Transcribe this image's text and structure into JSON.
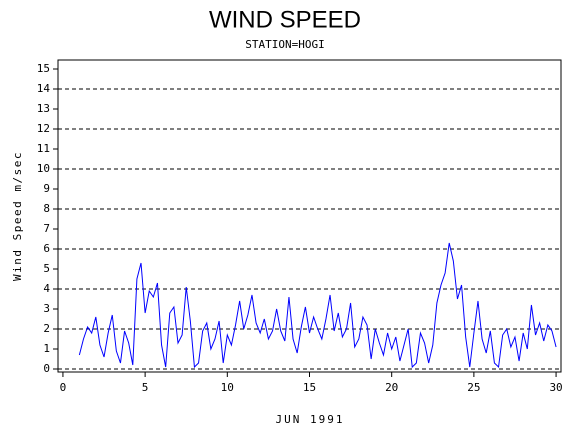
{
  "chart_data": {
    "type": "line",
    "title": "WIND SPEED",
    "subtitle": "STATION=HOGI",
    "x_label": "JUN 1991",
    "y_label": "Wind Speed m/sec",
    "xlim": [
      -0.3,
      30.3
    ],
    "ylim": [
      -0.15,
      15.45
    ],
    "xticks": [
      0,
      5,
      10,
      15,
      20,
      25,
      30
    ],
    "yticks": [
      0,
      1,
      2,
      3,
      4,
      5,
      6,
      7,
      8,
      9,
      10,
      11,
      12,
      13,
      14,
      15
    ],
    "grid": true,
    "series": [
      {
        "name": "Wind Speed",
        "color": "#0000ff",
        "x": [
          1,
          1.25,
          1.5,
          1.75,
          2,
          2.25,
          2.5,
          2.75,
          3,
          3.25,
          3.5,
          3.75,
          4,
          4.25,
          4.5,
          4.75,
          5,
          5.25,
          5.5,
          5.75,
          6,
          6.25,
          6.5,
          6.75,
          7,
          7.25,
          7.5,
          7.75,
          8,
          8.25,
          8.5,
          8.75,
          9,
          9.25,
          9.5,
          9.75,
          10,
          10.25,
          10.5,
          10.75,
          11,
          11.25,
          11.5,
          11.75,
          12,
          12.25,
          12.5,
          12.75,
          13,
          13.25,
          13.5,
          13.75,
          14,
          14.25,
          14.5,
          14.75,
          15,
          15.25,
          15.5,
          15.75,
          16,
          16.25,
          16.5,
          16.75,
          17,
          17.25,
          17.5,
          17.75,
          18,
          18.25,
          18.5,
          18.75,
          19,
          19.25,
          19.5,
          19.75,
          20,
          20.25,
          20.5,
          20.75,
          21,
          21.25,
          21.5,
          21.75,
          22,
          22.25,
          22.5,
          22.75,
          23,
          23.25,
          23.5,
          23.75,
          24,
          24.25,
          24.5,
          24.75,
          25,
          25.25,
          25.5,
          25.75,
          26,
          26.25,
          26.5,
          26.75,
          27,
          27.25,
          27.5,
          27.75,
          28,
          28.25,
          28.5,
          28.75,
          29,
          29.25,
          29.5,
          29.75,
          30
        ],
        "values": [
          0.7,
          1.5,
          2.1,
          1.8,
          2.6,
          1.2,
          0.6,
          1.8,
          2.7,
          0.9,
          0.3,
          1.9,
          1.3,
          0.2,
          4.5,
          5.3,
          2.8,
          3.9,
          3.6,
          4.3,
          1.2,
          0.1,
          2.8,
          3.1,
          1.3,
          1.7,
          4.1,
          2.4,
          0.1,
          0.3,
          1.9,
          2.3,
          1.0,
          1.5,
          2.4,
          0.3,
          1.7,
          1.2,
          2.2,
          3.4,
          2.0,
          2.7,
          3.7,
          2.3,
          1.8,
          2.5,
          1.5,
          1.9,
          3.0,
          1.9,
          1.4,
          3.6,
          1.5,
          0.8,
          2.1,
          3.1,
          1.8,
          2.6,
          2.0,
          1.5,
          2.5,
          3.7,
          1.9,
          2.8,
          1.6,
          2.0,
          3.3,
          1.1,
          1.5,
          2.6,
          2.2,
          0.5,
          2.0,
          1.3,
          0.7,
          1.8,
          1.0,
          1.6,
          0.4,
          1.2,
          2.0,
          0.1,
          0.3,
          1.8,
          1.3,
          0.3,
          1.2,
          3.3,
          4.2,
          4.8,
          6.3,
          5.4,
          3.5,
          4.2,
          1.6,
          0.1,
          1.8,
          3.4,
          1.5,
          0.8,
          1.9,
          0.3,
          0.1,
          1.7,
          2.0,
          1.1,
          1.6,
          0.4,
          1.8,
          1.0,
          3.2,
          1.7,
          2.3,
          1.4,
          2.2,
          1.9,
          1.1
        ]
      }
    ]
  }
}
